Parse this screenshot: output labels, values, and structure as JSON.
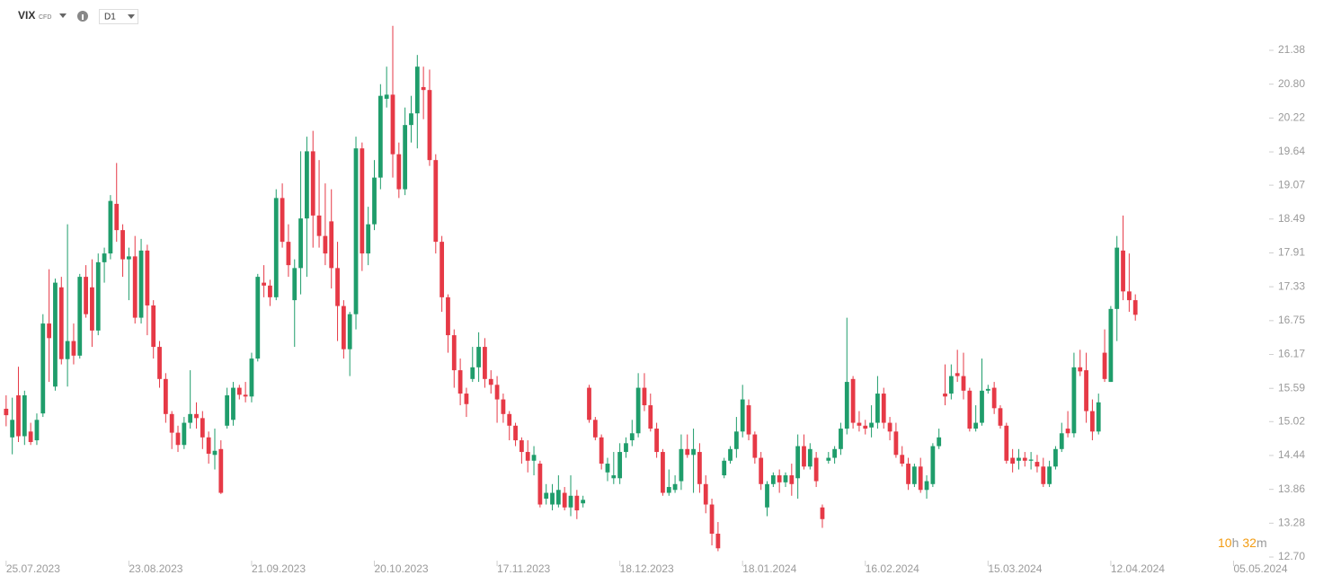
{
  "toolbar": {
    "symbol": "VIX",
    "symbol_type": "CFD",
    "interval": "D1"
  },
  "countdown": {
    "hours": "10",
    "hours_unit": "h",
    "minutes": "32",
    "minutes_unit": "m"
  },
  "chart_data": {
    "type": "candlestick",
    "up_color": "#1f9d6b",
    "down_color": "#e63946",
    "xlim": [
      -1,
      205.5
    ],
    "ylim": [
      12.3,
      21.8
    ],
    "xticks": [
      {
        "value": 0,
        "label": "25.07.2023"
      },
      {
        "value": 20,
        "label": "23.08.2023"
      },
      {
        "value": 40,
        "label": "21.09.2023"
      },
      {
        "value": 60,
        "label": "20.10.2023"
      },
      {
        "value": 80,
        "label": "17.11.2023"
      },
      {
        "value": 100,
        "label": "18.12.2023"
      },
      {
        "value": 120,
        "label": "18.01.2024"
      },
      {
        "value": 140,
        "label": "16.02.2024"
      },
      {
        "value": 160,
        "label": "15.03.2024"
      },
      {
        "value": 180,
        "label": "12.04.2024"
      },
      {
        "value": 200,
        "label": "05.05.2024"
      }
    ],
    "yticks": [
      21.38,
      {
        "value": 20.8,
        "label": "20.80"
      },
      20.22,
      19.64,
      19.07,
      18.49,
      17.91,
      17.33,
      16.75,
      16.17,
      15.59,
      15.02,
      14.44,
      13.86,
      13.28,
      {
        "value": 12.7,
        "label": "12.70"
      }
    ],
    "ohlc": [
      [
        15.24,
        15.47,
        14.94,
        15.13
      ],
      [
        14.75,
        15.43,
        14.46,
        15.05
      ],
      [
        15.47,
        15.96,
        14.67,
        14.77
      ],
      [
        14.77,
        15.55,
        14.62,
        15.47
      ],
      [
        14.85,
        15.0,
        14.62,
        14.67
      ],
      [
        14.7,
        15.16,
        14.62,
        15.05
      ],
      [
        15.16,
        16.86,
        15.1,
        16.7
      ],
      [
        16.7,
        17.63,
        15.7,
        16.45
      ],
      [
        15.62,
        17.47,
        15.55,
        17.4
      ],
      [
        17.32,
        17.5,
        16.0,
        16.09
      ],
      [
        16.09,
        18.4,
        15.62,
        16.4
      ],
      [
        16.4,
        16.7,
        16.0,
        16.15
      ],
      [
        16.15,
        17.55,
        16.1,
        17.5
      ],
      [
        17.5,
        17.7,
        16.8,
        16.86
      ],
      [
        17.32,
        17.8,
        16.3,
        16.58
      ],
      [
        16.58,
        17.9,
        16.5,
        17.75
      ],
      [
        17.75,
        18.0,
        17.4,
        17.9
      ],
      [
        17.9,
        18.9,
        17.8,
        18.8
      ],
      [
        18.75,
        19.45,
        18.1,
        18.3
      ],
      [
        18.3,
        18.4,
        17.5,
        17.8
      ],
      [
        17.8,
        18.0,
        17.1,
        17.85
      ],
      [
        17.85,
        18.2,
        16.7,
        16.8
      ],
      [
        16.8,
        18.15,
        16.7,
        17.95
      ],
      [
        17.95,
        18.05,
        16.5,
        17.01
      ],
      [
        17.01,
        17.1,
        16.1,
        16.3
      ],
      [
        16.3,
        16.4,
        15.6,
        15.75
      ],
      [
        15.75,
        15.85,
        15.0,
        15.15
      ],
      [
        15.15,
        15.2,
        14.55,
        14.83
      ],
      [
        14.83,
        14.95,
        14.5,
        14.62
      ],
      [
        14.62,
        15.1,
        14.55,
        15.0
      ],
      [
        15.0,
        15.9,
        14.9,
        15.15
      ],
      [
        15.15,
        15.35,
        14.9,
        15.08
      ],
      [
        15.08,
        15.2,
        14.55,
        14.75
      ],
      [
        14.75,
        14.85,
        14.3,
        14.47
      ],
      [
        14.45,
        14.9,
        14.2,
        14.52
      ],
      [
        14.55,
        14.7,
        13.78,
        13.8
      ],
      [
        14.95,
        15.6,
        14.9,
        15.47
      ],
      [
        15.05,
        15.7,
        14.95,
        15.6
      ],
      [
        15.6,
        15.65,
        15.4,
        15.48
      ],
      [
        15.48,
        15.7,
        15.35,
        15.45
      ],
      [
        15.45,
        16.2,
        15.35,
        16.1
      ],
      [
        16.1,
        17.55,
        16.05,
        17.5
      ],
      [
        17.4,
        17.7,
        17.15,
        17.35
      ],
      [
        17.35,
        17.45,
        17.0,
        17.15
      ],
      [
        17.15,
        19.0,
        17.1,
        18.85
      ],
      [
        18.85,
        19.1,
        18.0,
        18.1
      ],
      [
        18.1,
        18.4,
        17.5,
        17.7
      ],
      [
        17.1,
        17.8,
        16.3,
        17.65
      ],
      [
        17.65,
        19.65,
        17.2,
        18.5
      ],
      [
        18.5,
        19.9,
        17.5,
        19.65
      ],
      [
        19.65,
        20.0,
        18.0,
        18.55
      ],
      [
        18.55,
        19.5,
        18.0,
        18.2
      ],
      [
        18.2,
        19.1,
        17.7,
        17.9
      ],
      [
        18.45,
        19.0,
        17.3,
        17.65
      ],
      [
        17.65,
        18.1,
        16.4,
        17.0
      ],
      [
        17.0,
        17.1,
        16.1,
        16.26
      ],
      [
        16.26,
        16.9,
        15.8,
        16.86
      ],
      [
        16.86,
        19.9,
        16.6,
        19.7
      ],
      [
        19.7,
        19.8,
        17.6,
        17.9
      ],
      [
        17.9,
        18.7,
        17.7,
        18.4
      ],
      [
        18.4,
        19.5,
        18.3,
        19.2
      ],
      [
        19.2,
        20.8,
        19.0,
        20.6
      ],
      [
        20.55,
        21.1,
        20.4,
        20.62
      ],
      [
        20.62,
        21.8,
        19.2,
        19.6
      ],
      [
        19.6,
        19.8,
        18.85,
        19.0
      ],
      [
        19.0,
        20.4,
        18.9,
        20.1
      ],
      [
        20.1,
        20.6,
        19.8,
        20.3
      ],
      [
        20.3,
        21.3,
        19.7,
        21.1
      ],
      [
        20.75,
        21.1,
        20.2,
        20.7
      ],
      [
        20.7,
        21.05,
        19.4,
        19.5
      ],
      [
        19.5,
        19.6,
        17.9,
        18.1
      ],
      [
        18.1,
        18.2,
        16.9,
        17.15
      ],
      [
        17.15,
        17.2,
        16.2,
        16.5
      ],
      [
        16.5,
        16.6,
        15.6,
        15.9
      ],
      [
        15.9,
        16.1,
        15.3,
        15.5
      ],
      [
        15.5,
        15.6,
        15.1,
        15.32
      ],
      [
        15.75,
        16.3,
        15.7,
        15.95
      ],
      [
        15.95,
        16.55,
        15.7,
        16.3
      ],
      [
        16.3,
        16.45,
        15.6,
        15.75
      ],
      [
        15.75,
        15.9,
        15.5,
        15.65
      ],
      [
        15.65,
        15.8,
        15.0,
        15.4
      ],
      [
        15.4,
        15.5,
        15.0,
        15.15
      ],
      [
        15.15,
        15.2,
        14.7,
        14.95
      ],
      [
        14.95,
        15.0,
        14.6,
        14.7
      ],
      [
        14.7,
        14.75,
        14.3,
        14.5
      ],
      [
        14.5,
        14.7,
        14.15,
        14.35
      ],
      [
        14.35,
        14.6,
        14.1,
        14.45
      ],
      [
        14.3,
        14.35,
        13.55,
        13.6
      ],
      [
        13.7,
        13.95,
        13.6,
        13.8
      ],
      [
        13.6,
        13.95,
        13.5,
        13.8
      ],
      [
        13.6,
        14.1,
        13.55,
        13.85
      ],
      [
        13.8,
        13.9,
        13.5,
        13.55
      ],
      [
        13.55,
        14.1,
        13.4,
        13.75
      ],
      [
        13.75,
        13.85,
        13.35,
        13.5
      ],
      [
        13.62,
        13.75,
        13.55,
        13.68
      ],
      [
        15.6,
        15.65,
        15.0,
        15.05
      ],
      [
        15.05,
        15.1,
        14.7,
        14.75
      ],
      [
        14.75,
        14.8,
        14.2,
        14.3
      ],
      [
        14.15,
        14.4,
        14.0,
        14.3
      ],
      [
        14.05,
        14.5,
        13.95,
        14.1
      ],
      [
        14.05,
        14.65,
        13.95,
        14.5
      ],
      [
        14.5,
        14.75,
        14.4,
        14.65
      ],
      [
        14.7,
        15.05,
        14.6,
        14.82
      ],
      [
        14.82,
        15.85,
        14.75,
        15.6
      ],
      [
        15.6,
        15.85,
        15.2,
        15.3
      ],
      [
        15.3,
        15.5,
        14.85,
        14.9
      ],
      [
        14.9,
        15.0,
        14.4,
        14.5
      ],
      [
        14.5,
        14.55,
        13.75,
        13.8
      ],
      [
        13.8,
        14.2,
        13.75,
        13.9
      ],
      [
        13.85,
        14.1,
        13.8,
        13.95
      ],
      [
        14.0,
        14.8,
        13.85,
        14.55
      ],
      [
        14.55,
        14.8,
        14.4,
        14.45
      ],
      [
        14.45,
        14.9,
        13.8,
        14.55
      ],
      [
        14.5,
        14.65,
        13.8,
        13.95
      ],
      [
        13.95,
        14.1,
        13.45,
        13.6
      ],
      [
        13.6,
        13.7,
        12.9,
        13.1
      ],
      [
        13.1,
        13.3,
        12.8,
        12.85
      ],
      [
        14.1,
        14.4,
        14.05,
        14.35
      ],
      [
        14.35,
        14.6,
        14.3,
        14.55
      ],
      [
        14.55,
        15.1,
        14.4,
        14.85
      ],
      [
        14.85,
        15.65,
        14.75,
        15.4
      ],
      [
        15.3,
        15.4,
        14.7,
        14.8
      ],
      [
        14.8,
        14.85,
        14.3,
        14.4
      ],
      [
        14.4,
        14.5,
        13.85,
        13.95
      ],
      [
        13.55,
        14.0,
        13.4,
        13.95
      ],
      [
        13.95,
        14.15,
        13.9,
        14.1
      ],
      [
        14.1,
        14.2,
        13.8,
        13.98
      ],
      [
        13.98,
        14.15,
        13.9,
        14.1
      ],
      [
        14.1,
        14.3,
        13.75,
        13.95
      ],
      [
        14.05,
        14.8,
        13.7,
        14.6
      ],
      [
        14.6,
        14.8,
        14.2,
        14.25
      ],
      [
        14.25,
        14.65,
        14.2,
        14.55
      ],
      [
        14.4,
        14.5,
        13.9,
        14.0
      ],
      [
        13.55,
        13.6,
        13.2,
        13.35
      ],
      [
        14.35,
        14.5,
        14.3,
        14.4
      ],
      [
        14.4,
        14.6,
        14.3,
        14.55
      ],
      [
        14.55,
        15.0,
        14.45,
        14.9
      ],
      [
        14.9,
        16.8,
        14.8,
        15.7
      ],
      [
        15.75,
        15.8,
        14.9,
        15.0
      ],
      [
        15.0,
        15.2,
        14.85,
        14.95
      ],
      [
        14.95,
        15.05,
        14.8,
        14.9
      ],
      [
        14.92,
        15.3,
        14.75,
        15.0
      ],
      [
        15.0,
        15.8,
        14.9,
        15.5
      ],
      [
        15.5,
        15.6,
        14.9,
        15.0
      ],
      [
        15.0,
        15.1,
        14.7,
        14.85
      ],
      [
        14.85,
        15.0,
        14.4,
        14.45
      ],
      [
        14.45,
        14.6,
        14.25,
        14.3
      ],
      [
        14.3,
        14.4,
        13.85,
        13.95
      ],
      [
        13.95,
        14.3,
        13.9,
        14.25
      ],
      [
        14.25,
        14.4,
        13.8,
        13.85
      ],
      [
        13.85,
        14.1,
        13.7,
        14.0
      ],
      [
        13.95,
        14.65,
        13.9,
        14.6
      ],
      [
        14.6,
        14.9,
        14.55,
        14.75
      ],
      [
        15.5,
        16.0,
        15.3,
        15.45
      ],
      [
        15.5,
        16.0,
        15.4,
        15.8
      ],
      [
        15.85,
        16.25,
        15.7,
        15.8
      ],
      [
        15.8,
        16.2,
        15.4,
        15.55
      ],
      [
        15.55,
        15.6,
        14.85,
        14.9
      ],
      [
        14.9,
        15.3,
        14.85,
        15.0
      ],
      [
        15.0,
        16.1,
        14.95,
        15.55
      ],
      [
        15.55,
        15.65,
        15.5,
        15.58
      ],
      [
        15.6,
        15.7,
        15.15,
        15.25
      ],
      [
        15.25,
        15.3,
        14.9,
        14.95
      ],
      [
        14.95,
        15.0,
        14.3,
        14.35
      ],
      [
        14.4,
        14.55,
        14.15,
        14.3
      ],
      [
        14.35,
        14.55,
        14.2,
        14.4
      ],
      [
        14.4,
        14.5,
        14.25,
        14.35
      ],
      [
        14.35,
        14.5,
        14.2,
        14.37
      ],
      [
        14.33,
        14.45,
        14.15,
        14.25
      ],
      [
        14.25,
        14.4,
        13.9,
        13.95
      ],
      [
        13.95,
        14.35,
        13.9,
        14.25
      ],
      [
        14.25,
        14.6,
        14.2,
        14.55
      ],
      [
        14.55,
        15.0,
        14.5,
        14.82
      ],
      [
        14.9,
        15.2,
        14.75,
        14.82
      ],
      [
        14.82,
        16.2,
        14.75,
        15.95
      ],
      [
        15.95,
        16.25,
        15.8,
        15.88
      ],
      [
        15.9,
        16.2,
        15.0,
        15.2
      ],
      [
        15.2,
        15.4,
        14.7,
        14.85
      ],
      [
        14.85,
        15.5,
        14.8,
        15.35
      ],
      [
        16.2,
        16.6,
        15.7,
        15.75
      ],
      [
        15.7,
        17.0,
        15.7,
        16.95
      ],
      [
        16.95,
        18.2,
        16.4,
        18.0
      ],
      [
        17.95,
        18.55,
        17.1,
        17.25
      ],
      [
        17.25,
        17.9,
        16.9,
        17.1
      ],
      [
        17.1,
        17.2,
        16.75,
        16.85
      ]
    ]
  }
}
